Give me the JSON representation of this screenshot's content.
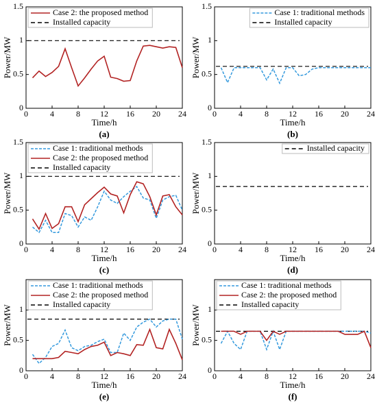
{
  "chart_data": [
    {
      "type": "line",
      "caption": "(a)",
      "xlabel": "Time/h",
      "ylabel": "Power/MW",
      "xlim": [
        0,
        24
      ],
      "xticks": [
        0,
        4,
        8,
        12,
        16,
        20,
        24
      ],
      "ylim": [
        0,
        1.5
      ],
      "yticks": [
        0,
        0.5,
        1,
        1.5
      ],
      "legend": "upper left",
      "x": [
        1,
        2,
        3,
        4,
        5,
        6,
        7,
        8,
        9,
        10,
        11,
        12,
        13,
        14,
        15,
        16,
        17,
        18,
        19,
        20,
        21,
        22,
        23,
        24
      ],
      "series": [
        {
          "name": "Case 2: the proposed method",
          "color": "#b22222",
          "style": "solid",
          "values": [
            0.45,
            0.55,
            0.47,
            0.53,
            0.62,
            0.88,
            0.6,
            0.33,
            0.45,
            0.58,
            0.7,
            0.77,
            0.46,
            0.44,
            0.4,
            0.41,
            0.7,
            0.92,
            0.93,
            0.91,
            0.89,
            0.91,
            0.9,
            0.6
          ]
        }
      ],
      "reference": {
        "name": "Installed capacity",
        "color": "#000000",
        "value": 1
      }
    },
    {
      "type": "line",
      "caption": "(b)",
      "xlabel": "Time/h",
      "ylabel": "Power/MW",
      "xlim": [
        0,
        24
      ],
      "xticks": [
        0,
        4,
        8,
        12,
        16,
        20,
        24
      ],
      "ylim": [
        0,
        1.5
      ],
      "yticks": [
        0,
        0.5,
        1,
        1.5
      ],
      "legend": "upper right",
      "x": [
        1,
        2,
        3,
        4,
        5,
        6,
        7,
        8,
        9,
        10,
        11,
        12,
        13,
        14,
        15,
        16,
        17,
        18,
        19,
        20,
        21,
        22,
        23,
        24
      ],
      "series": [
        {
          "name": "Case 1: traditional methods",
          "color": "#3399dd",
          "style": "dotted",
          "values": [
            0.6,
            0.38,
            0.6,
            0.6,
            0.6,
            0.6,
            0.6,
            0.42,
            0.58,
            0.37,
            0.6,
            0.6,
            0.48,
            0.5,
            0.58,
            0.6,
            0.6,
            0.6,
            0.6,
            0.6,
            0.6,
            0.6,
            0.6,
            0.6
          ]
        }
      ],
      "reference": {
        "name": "Installed capacity",
        "color": "#000000",
        "value": 0.62
      }
    },
    {
      "type": "line",
      "caption": "(c)",
      "xlabel": "Time/h",
      "ylabel": "Power/MW",
      "xlim": [
        0,
        24
      ],
      "xticks": [
        0,
        4,
        8,
        12,
        16,
        20,
        24
      ],
      "ylim": [
        0,
        1.5
      ],
      "yticks": [
        0,
        0.5,
        1,
        1.5
      ],
      "legend": "upper left",
      "x": [
        1,
        2,
        3,
        4,
        5,
        6,
        7,
        8,
        9,
        10,
        11,
        12,
        13,
        14,
        15,
        16,
        17,
        18,
        19,
        20,
        21,
        22,
        23,
        24
      ],
      "series": [
        {
          "name": "Case 1: traditional methods",
          "color": "#3399dd",
          "style": "dotted",
          "values": [
            0.25,
            0.17,
            0.35,
            0.17,
            0.17,
            0.45,
            0.42,
            0.25,
            0.4,
            0.35,
            0.55,
            0.78,
            0.65,
            0.6,
            0.7,
            0.78,
            0.85,
            0.68,
            0.65,
            0.38,
            0.65,
            0.7,
            0.72,
            0.5
          ]
        },
        {
          "name": "Case 2: the proposed method",
          "color": "#b22222",
          "style": "solid",
          "values": [
            0.37,
            0.22,
            0.45,
            0.23,
            0.3,
            0.55,
            0.55,
            0.33,
            0.58,
            0.67,
            0.76,
            0.84,
            0.74,
            0.71,
            0.46,
            0.73,
            0.92,
            0.89,
            0.7,
            0.43,
            0.71,
            0.73,
            0.55,
            0.43
          ]
        }
      ],
      "reference": {
        "name": "Installed capacity",
        "color": "#000000",
        "value": 1
      }
    },
    {
      "type": "line",
      "caption": "(d)",
      "xlabel": "Time/h",
      "ylabel": "Power/MW",
      "xlim": [
        0,
        24
      ],
      "xticks": [
        0,
        4,
        8,
        12,
        16,
        20,
        24
      ],
      "ylim": [
        0,
        1.5
      ],
      "yticks": [
        0,
        0.5,
        1,
        1.5
      ],
      "legend": "upper right",
      "reference": {
        "name": "Installed capacity",
        "color": "#000000",
        "value": 0.85
      }
    },
    {
      "type": "line",
      "caption": "(e)",
      "xlabel": "Time/h",
      "ylabel": "Power/MW",
      "xlim": [
        0,
        24
      ],
      "xticks": [
        0,
        4,
        8,
        12,
        16,
        20,
        24
      ],
      "ylim": [
        0,
        1.5
      ],
      "yticks": [
        0,
        0.5,
        1
      ],
      "legend": "upper left",
      "x": [
        1,
        2,
        3,
        4,
        5,
        6,
        7,
        8,
        9,
        10,
        11,
        12,
        13,
        14,
        15,
        16,
        17,
        18,
        19,
        20,
        21,
        22,
        23,
        24
      ],
      "series": [
        {
          "name": "Case 1: traditional methods",
          "color": "#3399dd",
          "style": "dotted",
          "values": [
            0.27,
            0.12,
            0.22,
            0.4,
            0.45,
            0.67,
            0.38,
            0.33,
            0.4,
            0.42,
            0.48,
            0.52,
            0.3,
            0.3,
            0.62,
            0.5,
            0.72,
            0.8,
            0.85,
            0.72,
            0.82,
            0.85,
            0.85,
            0.52
          ]
        },
        {
          "name": "Case 2: the proposed method",
          "color": "#b22222",
          "style": "solid",
          "values": [
            0.2,
            0.2,
            0.2,
            0.2,
            0.22,
            0.32,
            0.3,
            0.28,
            0.35,
            0.4,
            0.42,
            0.47,
            0.25,
            0.3,
            0.28,
            0.25,
            0.43,
            0.42,
            0.68,
            0.38,
            0.36,
            0.68,
            0.45,
            0.18
          ]
        }
      ],
      "reference": {
        "name": "Installed capacity",
        "color": "#000000",
        "value": 0.85
      }
    },
    {
      "type": "line",
      "caption": "(f)",
      "xlabel": "Time/h",
      "ylabel": "Power/MW",
      "xlim": [
        0,
        24
      ],
      "xticks": [
        0,
        4,
        8,
        12,
        16,
        20,
        24
      ],
      "ylim": [
        0,
        1.5
      ],
      "yticks": [
        0,
        0.5,
        1
      ],
      "legend": "upper left",
      "x": [
        1,
        2,
        3,
        4,
        5,
        6,
        7,
        8,
        9,
        10,
        11,
        12,
        13,
        14,
        15,
        16,
        17,
        18,
        19,
        20,
        21,
        22,
        23,
        24
      ],
      "series": [
        {
          "name": "Case 1: traditional methods",
          "color": "#3399dd",
          "style": "dotted",
          "values": [
            0.45,
            0.65,
            0.45,
            0.35,
            0.65,
            0.65,
            0.65,
            0.35,
            0.65,
            0.35,
            0.65,
            0.65,
            0.65,
            0.65,
            0.65,
            0.65,
            0.65,
            0.65,
            0.65,
            0.65,
            0.65,
            0.65,
            0.65,
            0.62
          ]
        },
        {
          "name": "Case 2: the proposed method",
          "color": "#b22222",
          "style": "solid",
          "values": [
            0.65,
            0.65,
            0.65,
            0.6,
            0.65,
            0.65,
            0.65,
            0.5,
            0.65,
            0.6,
            0.65,
            0.65,
            0.65,
            0.65,
            0.65,
            0.65,
            0.65,
            0.65,
            0.65,
            0.6,
            0.6,
            0.6,
            0.65,
            0.38
          ]
        }
      ],
      "reference": {
        "name": "Installed capacity",
        "color": "#000000",
        "value": 0.65
      }
    }
  ]
}
